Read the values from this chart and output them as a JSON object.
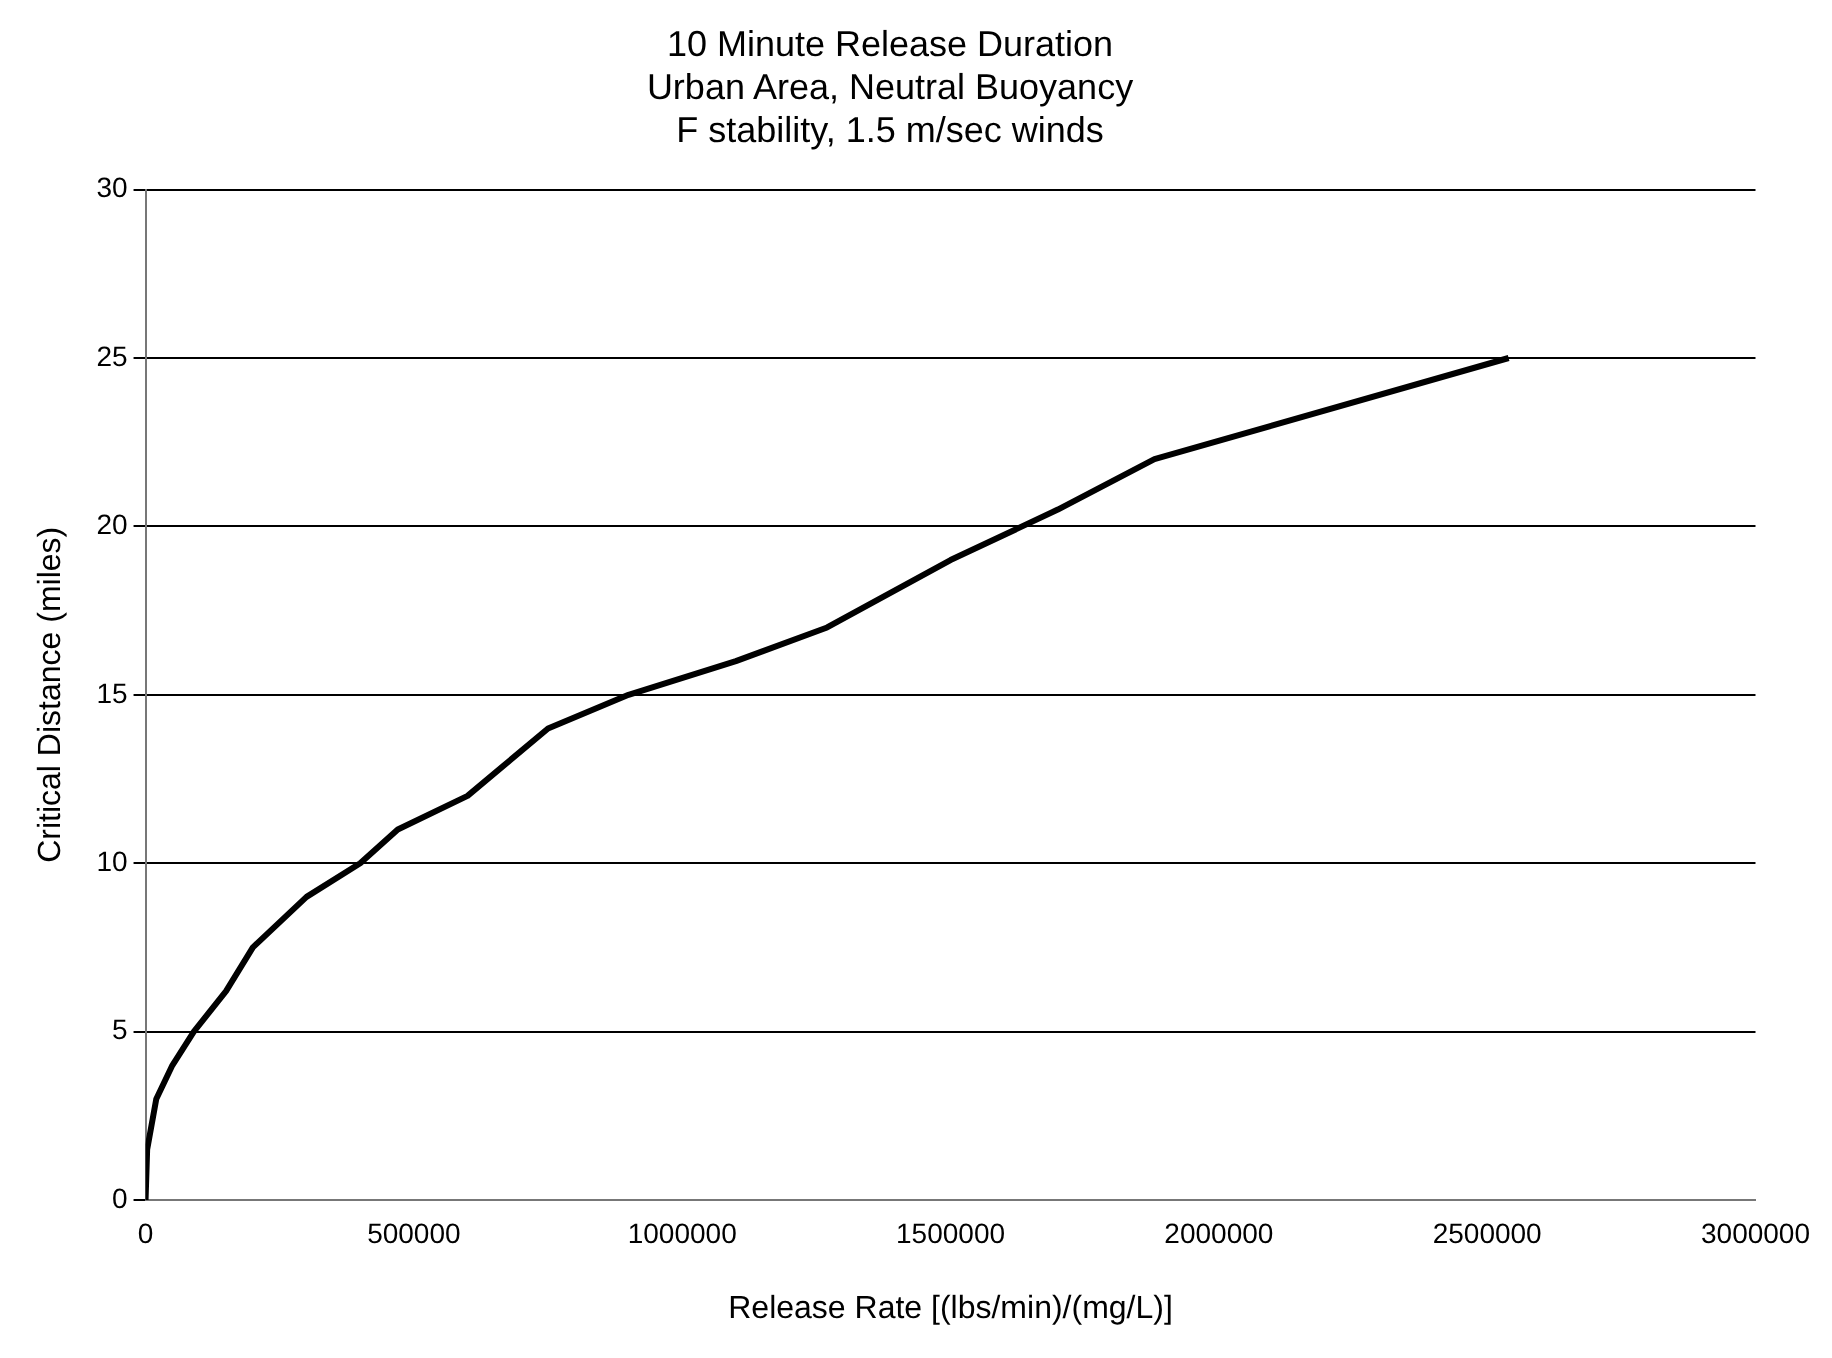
{
  "chart_data": {
    "type": "line",
    "title": "10 Minute Release Duration\nUrban Area, Neutral Buoyancy\nF stability, 1.5 m/sec winds",
    "xlabel": "Release Rate [(lbs/min)/(mg/L)]",
    "ylabel": "Critical Distance (miles)",
    "x": [
      0,
      3000,
      20000,
      50000,
      90000,
      150000,
      200000,
      300000,
      400000,
      470000,
      600000,
      750000,
      900000,
      1100000,
      1270000,
      1500000,
      1700000,
      1880000,
      2540000
    ],
    "series": [
      {
        "color": "#000000",
        "values": [
          0,
          1.5,
          3,
          4,
          5,
          6.2,
          7.5,
          9,
          10,
          11,
          12,
          14,
          15,
          16,
          17,
          19,
          20.5,
          22,
          25
        ]
      }
    ],
    "xlim": [
      0,
      3000000
    ],
    "xticks": [
      0,
      500000,
      1000000,
      1500000,
      2000000,
      2500000,
      3000000
    ],
    "ylim": [
      0,
      30
    ],
    "yticks": [
      0,
      5,
      10,
      15,
      20,
      25,
      30
    ],
    "grid": "y",
    "marker": "none",
    "line_style": "solid"
  }
}
